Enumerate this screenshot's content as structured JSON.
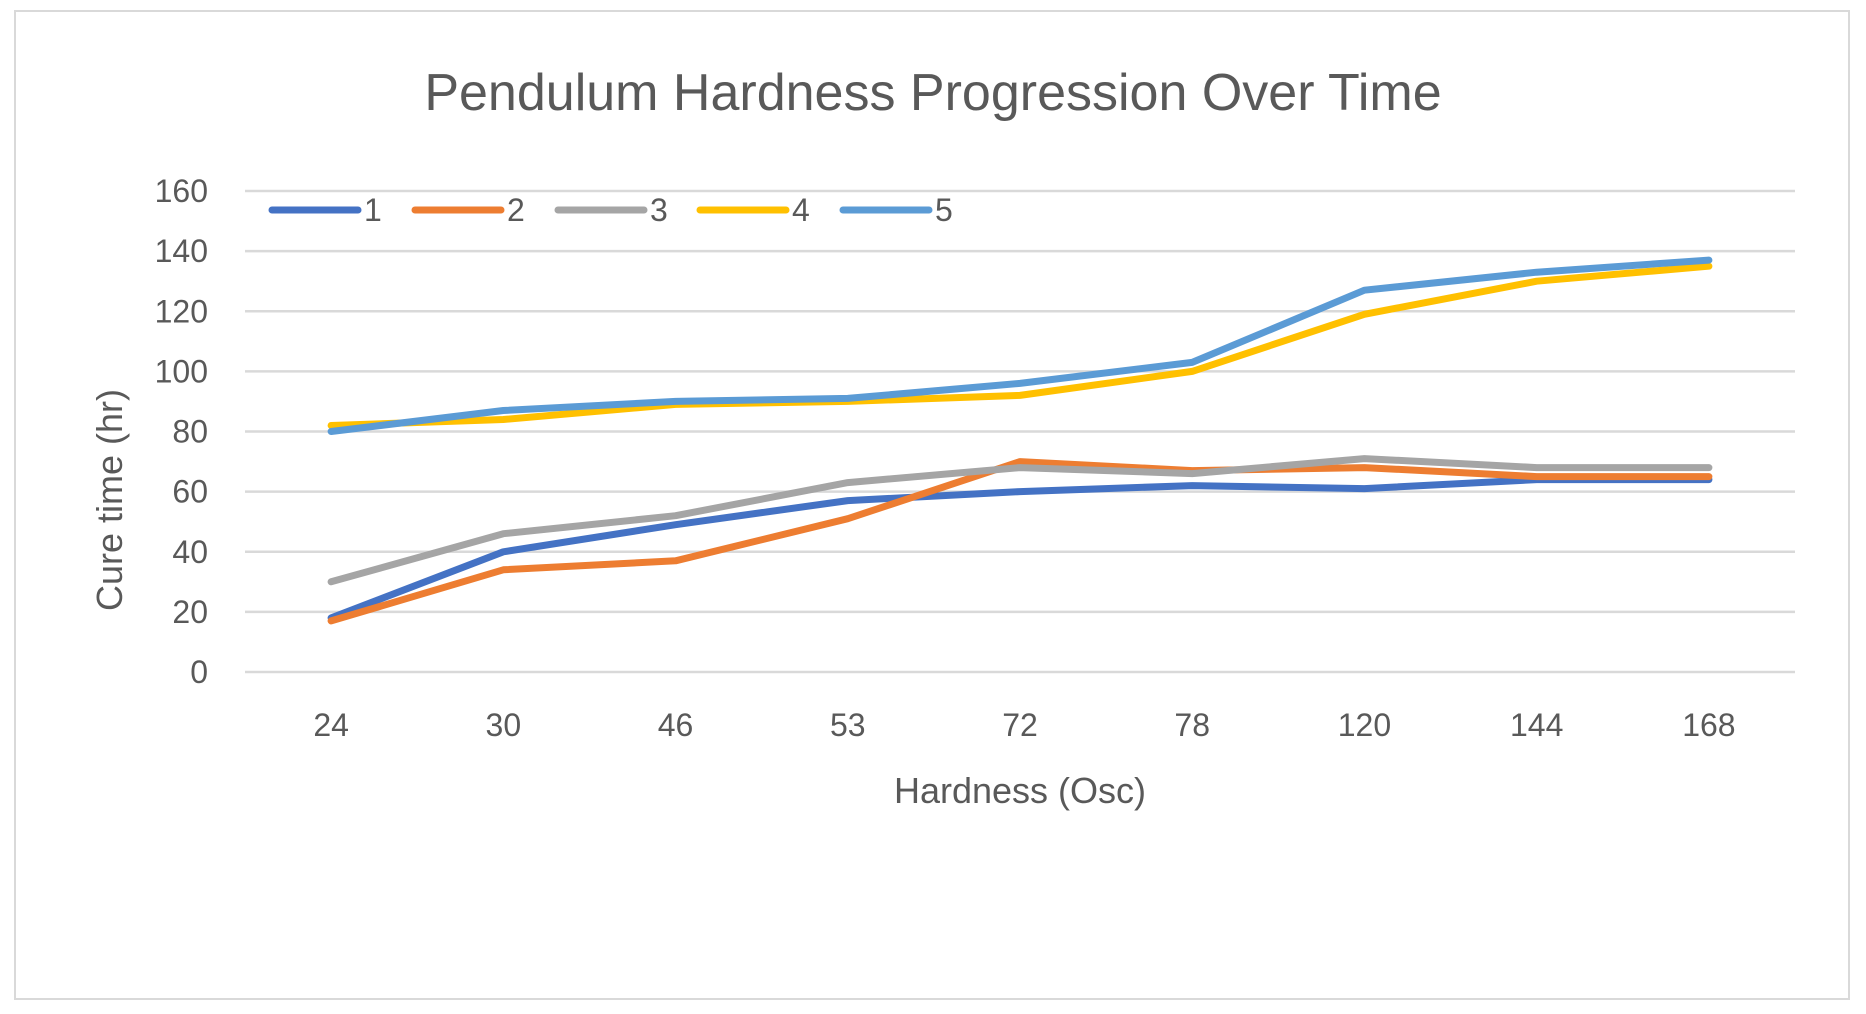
{
  "chart_data": {
    "type": "line",
    "title": "Pendulum Hardness Progression Over Time",
    "xlabel": "Hardness (Osc)",
    "ylabel": "Cure time (hr)",
    "categories": [
      "24",
      "30",
      "46",
      "53",
      "72",
      "78",
      "120",
      "144",
      "168"
    ],
    "ylim": [
      0,
      160
    ],
    "yticks": [
      0,
      20,
      40,
      60,
      80,
      100,
      120,
      140,
      160
    ],
    "grid": true,
    "legend_position": "top-left",
    "series": [
      {
        "name": "1",
        "color": "#4472c4",
        "values": [
          18,
          40,
          49,
          57,
          60,
          62,
          61,
          64,
          64
        ]
      },
      {
        "name": "2",
        "color": "#ed7d31",
        "values": [
          17,
          34,
          37,
          51,
          70,
          67,
          68,
          65,
          65
        ]
      },
      {
        "name": "3",
        "color": "#a5a5a5",
        "values": [
          30,
          46,
          52,
          63,
          68,
          66,
          71,
          68,
          68
        ]
      },
      {
        "name": "4",
        "color": "#ffc000",
        "values": [
          82,
          84,
          89,
          90,
          92,
          100,
          119,
          130,
          135
        ]
      },
      {
        "name": "5",
        "color": "#5b9bd5",
        "values": [
          80,
          87,
          90,
          91,
          96,
          103,
          127,
          133,
          137
        ]
      }
    ]
  }
}
